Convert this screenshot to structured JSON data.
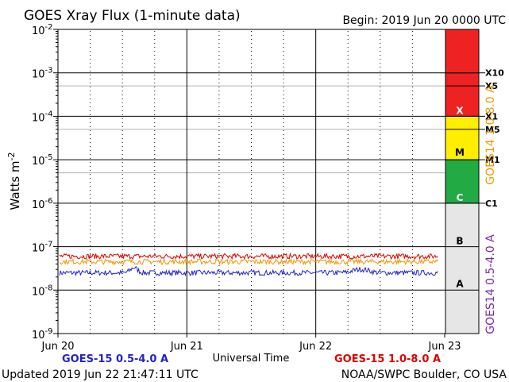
{
  "chart_data": {
    "type": "line",
    "title": "GOES Xray Flux (1-minute data)",
    "begin_label": "Begin:  2019 Jun 20 0000 UTC",
    "ylabel_base": "Watts m",
    "ylabel_exp": "-2",
    "xlabel": "Universal Time",
    "y_scale": "log",
    "ylim": [
      1e-09,
      0.01
    ],
    "y_ticks": [
      {
        "base": "10",
        "exp": "-9"
      },
      {
        "base": "10",
        "exp": "-8"
      },
      {
        "base": "10",
        "exp": "-7"
      },
      {
        "base": "10",
        "exp": "-6"
      },
      {
        "base": "10",
        "exp": "-5"
      },
      {
        "base": "10",
        "exp": "-4"
      },
      {
        "base": "10",
        "exp": "-3"
      },
      {
        "base": "10",
        "exp": "-2"
      }
    ],
    "x_ticks": [
      "Jun 20",
      "Jun 21",
      "Jun 22",
      "Jun 23"
    ],
    "xlim_days": [
      0,
      3
    ],
    "series": [
      {
        "name": "GOES-15 0.5-4.0 A",
        "color": "#2222cc",
        "typical_value": 2.5e-08
      },
      {
        "name": "GOES-15 1.0-8.0 A",
        "color": "#dd0000",
        "typical_value": 6e-08
      },
      {
        "name": "GOES14 1.0-8.0 A",
        "color": "#ee9900",
        "typical_value": 4.5e-08
      },
      {
        "name": "GOES14 0.5-4.0 A",
        "color": "#7a2aa8",
        "typical_value": 2.2e-08
      }
    ],
    "legend_bottom": [
      {
        "label": "GOES-15 0.5-4.0 A",
        "color": "#2222cc"
      },
      {
        "label": "GOES-15 1.0-8.0 A",
        "color": "#dd0000"
      }
    ],
    "right_axis_labels": [
      {
        "label": "GOES14 1.0-8.0 A",
        "color": "#ee9900"
      },
      {
        "label": "GOES14 0.5-4.0 A",
        "color": "#7a2aa8"
      }
    ],
    "flare_classes": [
      {
        "label": "X",
        "from": 0.0001,
        "to": 0.01,
        "color": "#ee2222",
        "text_color": "#ffffff"
      },
      {
        "label": "M",
        "from": 1e-05,
        "to": 0.0001,
        "color": "#ffee00",
        "text_color": "#000000"
      },
      {
        "label": "C",
        "from": 1e-06,
        "to": 1e-05,
        "color": "#22aa44",
        "text_color": "#ffffff"
      },
      {
        "label": "B",
        "from": 1e-07,
        "to": 1e-06,
        "color": "#e6e6e6",
        "text_color": "#000000"
      },
      {
        "label": "A",
        "from": 1e-09,
        "to": 1e-07,
        "color": "#e6e6e6",
        "text_color": "#000000"
      }
    ],
    "flare_markers": [
      {
        "label": "X10",
        "value": 0.001
      },
      {
        "label": "X5",
        "value": 0.0005
      },
      {
        "label": "X1",
        "value": 0.0001
      },
      {
        "label": "M5",
        "value": 5e-05
      },
      {
        "label": "M1",
        "value": 1e-05
      },
      {
        "label": "C1",
        "value": 1e-06
      }
    ],
    "updated": "Updated 2019 Jun 22 21:47:11 UTC",
    "credit": "NOAA/SWPC Boulder, CO USA"
  }
}
